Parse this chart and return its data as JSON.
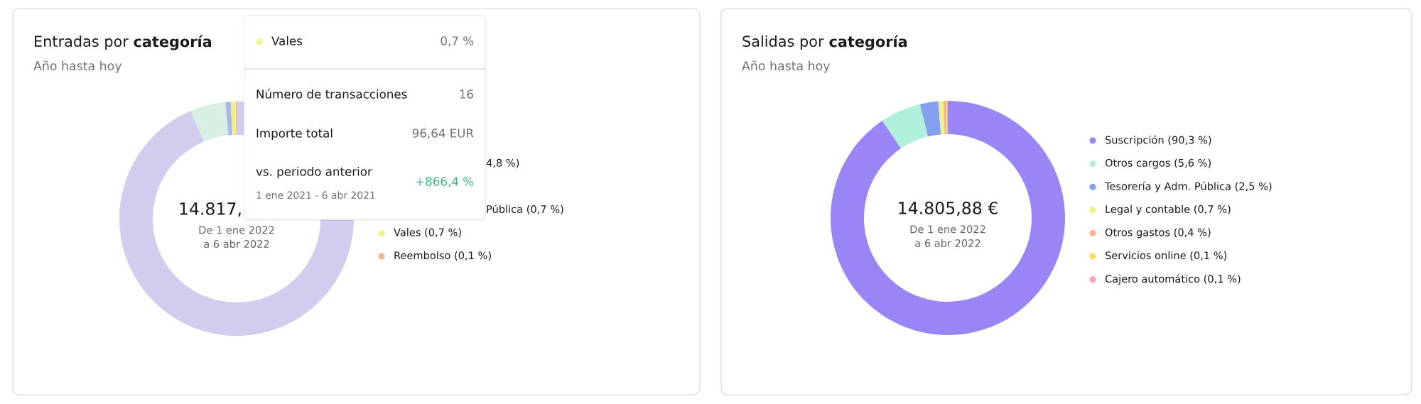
{
  "chart_data": [
    {
      "type": "donut",
      "title": "Entradas por categoría",
      "subtitle": "Año hasta hoy",
      "categories": [
        null,
        null,
        null,
        null,
        "Vales (0,7 %)",
        "Reembolso (0,1 %)"
      ],
      "values": [
        93.6,
        4.8,
        0.1,
        0.7,
        0.7,
        0.1
      ],
      "colors": [
        "#d2ccee",
        "#d8efe4",
        "#c9cde6",
        "#a9b8ea",
        "#eef28a",
        "#f8b48c"
      ],
      "legend": "right",
      "annotations": [
        "14.817,",
        "De 1 ene 2022\na 6 abr 2022",
        "4,8 %)",
        "Pública (0,7 %)"
      ]
    },
    {
      "type": "other",
      "color": "#eef28a",
      "annotations": [
        "Vales",
        "0,7 %",
        "Número de transacciones",
        "16",
        "Importe total",
        "96,64 EUR",
        "vs. periodo anterior",
        "+866,4 %",
        "1 ene 2021 - 6 abr 2021"
      ]
    },
    {
      "type": "donut",
      "title": "Salidas por categoría",
      "subtitle": "Año hasta hoy",
      "categories": [
        "Suscripción (90,3 %)",
        "Otros cargos (5,6 %)",
        "Tesorería y Adm. Pública (2,5 %)",
        "Legal y contable (0,7 %)",
        "Otros gastos (0,4 %)",
        "Servicios online (0,1 %)",
        "Cajero automático (0,1 %)"
      ],
      "values": [
        90.3,
        5.6,
        2.5,
        0.7,
        0.4,
        0.1,
        0.1
      ],
      "colors": [
        "#9b84f5",
        "#aef0dc",
        "#85a0f0",
        "#eef28a",
        "#f8b48c",
        "#fbe060",
        "#f7a3c4"
      ],
      "legend": "right",
      "annotations": [
        "14.805,88 €",
        "De 1 ene 2022\na 6 abr 2022"
      ]
    }
  ]
}
